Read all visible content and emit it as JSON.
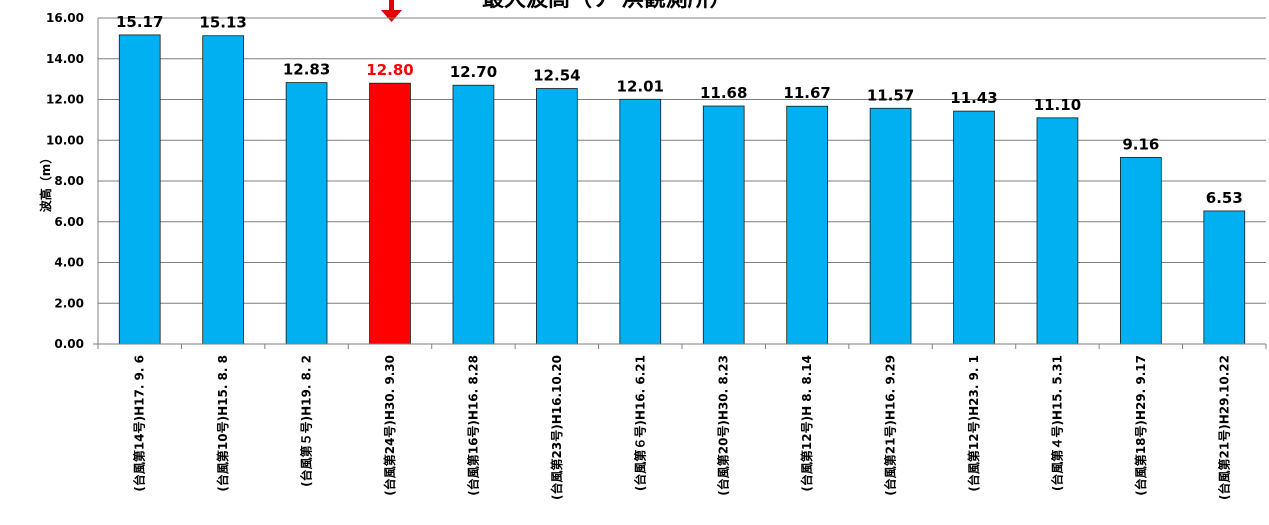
{
  "chart_data": {
    "type": "bar",
    "title": "最大波高（ナ    浜観測所）",
    "ylabel": "波高（m）",
    "ylim": [
      0,
      16
    ],
    "ytick_step": 2,
    "ytick_labels": [
      "0.00",
      "2.00",
      "4.00",
      "6.00",
      "8.00",
      "10.00",
      "12.00",
      "14.00",
      "16.00"
    ],
    "grid": true,
    "categories": [
      "(台風第14号)H17.  9.  6",
      "(台風第10号)H15.  8.  8",
      "(台風第５号)H19.  8.  2",
      "(台風第24号)H30.  9.30",
      "(台風第16号)H16.  8.28",
      "(台風第23号)H16.10.20",
      "(台風第６号)H16.  6.21",
      "(台風第20号)H30.  8.23",
      "(台風第12号)H 8.  8.14",
      "(台風第21号)H16.  9.29",
      "(台風第12号)H23.  9.  1",
      "(台風第４号)H15.  5.31",
      "(台風第18号)H29.  9.17",
      "(台風第21号)H29.10.22"
    ],
    "values": [
      15.17,
      15.13,
      12.83,
      12.8,
      12.7,
      12.54,
      12.01,
      11.68,
      11.67,
      11.57,
      11.43,
      11.1,
      9.16,
      6.53
    ],
    "value_labels": [
      "15.17",
      "15.13",
      "12.83",
      "12.80",
      "12.70",
      "12.54",
      "12.01",
      "11.68",
      "11.67",
      "11.57",
      "11.43",
      "11.10",
      "9.16",
      "6.53"
    ],
    "highlight_index": 3,
    "colors": {
      "bar": "#00b0f0",
      "highlight": "#ff0000",
      "arrow": "#e00000",
      "grid": "#7f7f7f",
      "axis": "#808080"
    }
  }
}
